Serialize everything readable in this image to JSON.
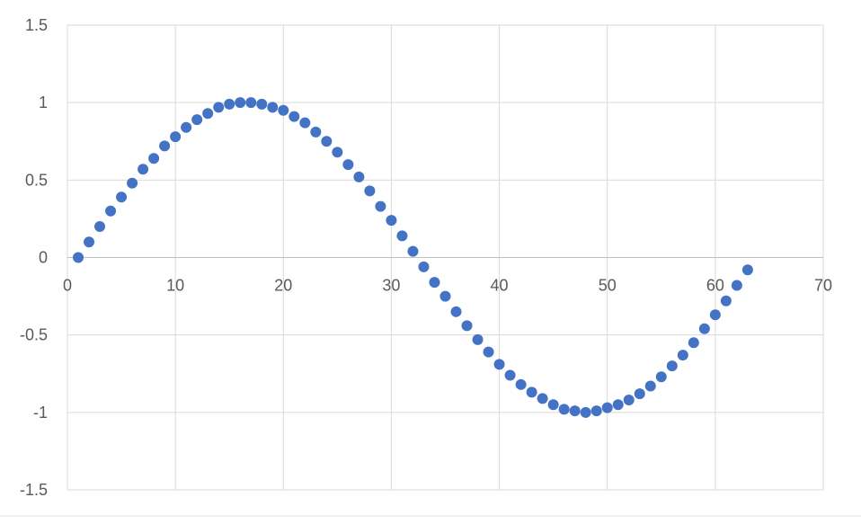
{
  "chart_data": {
    "type": "scatter",
    "title": "",
    "xlabel": "",
    "ylabel": "",
    "xlim": [
      0,
      70
    ],
    "ylim": [
      -1.5,
      1.5
    ],
    "x_ticks": [
      "0",
      "10",
      "20",
      "30",
      "40",
      "50",
      "60",
      "70"
    ],
    "y_ticks": [
      "1.5",
      "1",
      "0.5",
      "0",
      "-0.5",
      "-1",
      "-1.5"
    ],
    "grid": true,
    "legend": "none",
    "marker_color": "#4472c4",
    "series": [
      {
        "x": [
          1,
          2,
          3,
          4,
          5,
          6,
          7,
          8,
          9,
          10,
          11,
          12,
          13,
          14,
          15,
          16,
          17,
          18,
          19,
          20,
          21,
          22,
          23,
          24,
          25,
          26,
          27,
          28,
          29,
          30,
          31,
          32,
          33,
          34,
          35,
          36,
          37,
          38,
          39,
          40,
          41,
          42,
          43,
          44,
          45,
          46,
          47,
          48,
          49,
          50,
          51,
          52,
          53,
          54,
          55,
          56,
          57,
          58,
          59,
          60,
          61,
          62,
          63
        ],
        "y": [
          0,
          0.1,
          0.2,
          0.3,
          0.39,
          0.48,
          0.57,
          0.64,
          0.72,
          0.78,
          0.84,
          0.89,
          0.93,
          0.97,
          0.99,
          1.0,
          1.0,
          0.99,
          0.97,
          0.95,
          0.91,
          0.87,
          0.81,
          0.75,
          0.68,
          0.6,
          0.52,
          0.43,
          0.33,
          0.24,
          0.14,
          0.04,
          -0.06,
          -0.16,
          -0.25,
          -0.35,
          -0.44,
          -0.53,
          -0.61,
          -0.69,
          -0.76,
          -0.82,
          -0.87,
          -0.91,
          -0.95,
          -0.98,
          -0.99,
          -1.0,
          -0.99,
          -0.97,
          -0.95,
          -0.92,
          -0.88,
          -0.83,
          -0.77,
          -0.7,
          -0.63,
          -0.55,
          -0.46,
          -0.37,
          -0.28,
          -0.18,
          -0.08
        ]
      }
    ]
  }
}
